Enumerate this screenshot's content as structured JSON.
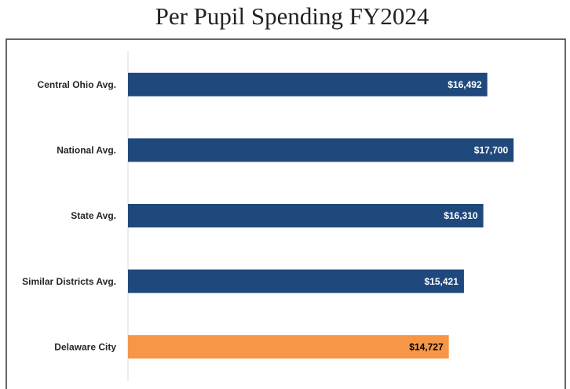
{
  "chart_data": {
    "type": "bar",
    "orientation": "horizontal",
    "title": "Per Pupil Spending FY2024",
    "categories": [
      "Central Ohio Avg.",
      "National Avg.",
      "State Avg.",
      "Similar Districts Avg.",
      "Delaware City"
    ],
    "values": [
      16492,
      17700,
      16310,
      15421,
      14727
    ],
    "value_labels": [
      "$16,492",
      "$17,700",
      "$16,310",
      "$15,421",
      "$14,727"
    ],
    "colors": [
      "#1f497d",
      "#1f497d",
      "#1f497d",
      "#1f497d",
      "#f79646"
    ],
    "xlim": [
      0,
      20000
    ]
  }
}
